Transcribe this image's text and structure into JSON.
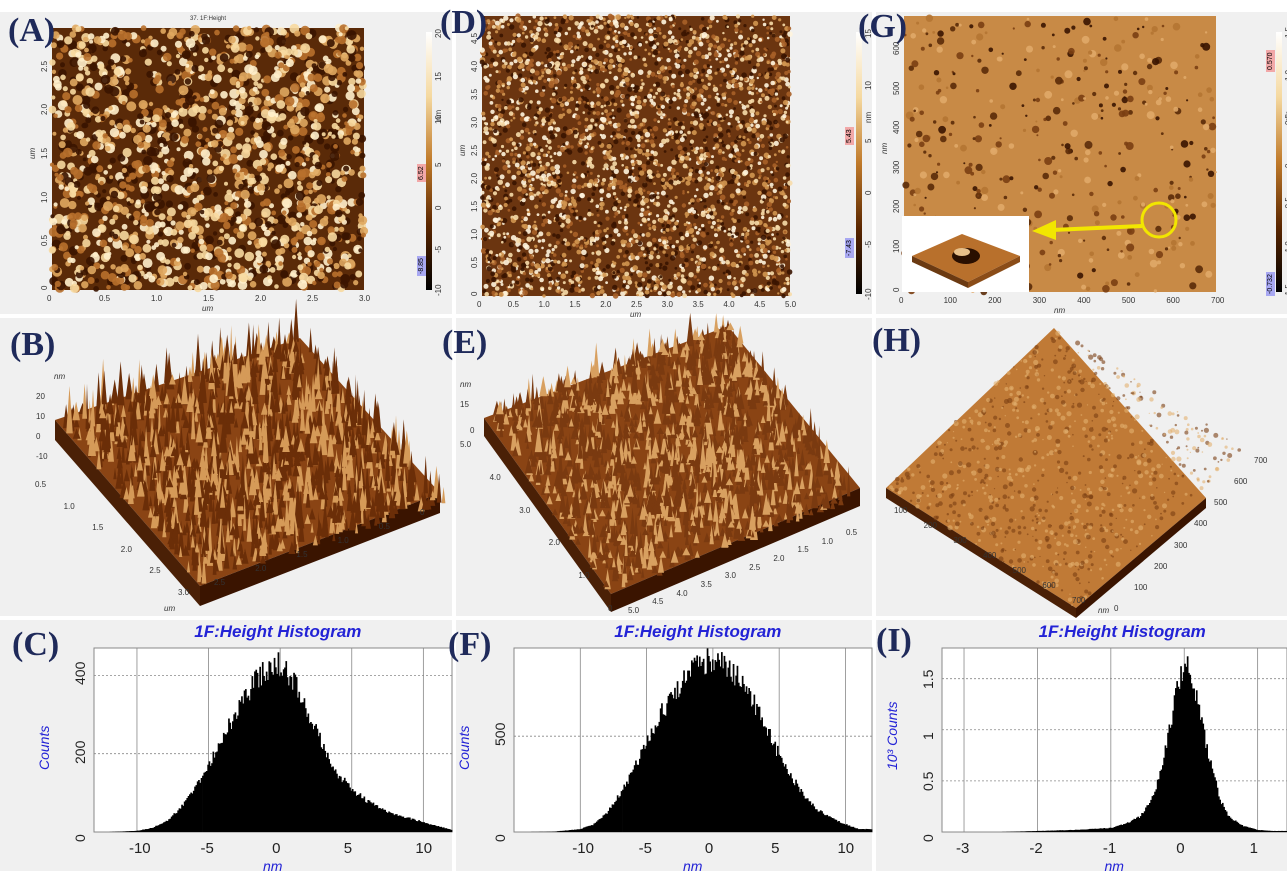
{
  "labels": {
    "a": "(A)",
    "b": "(B)",
    "c": "(C)",
    "d": "(D)",
    "e": "(E)",
    "f": "(F)",
    "g": "(G)",
    "h": "(H)",
    "i": "(I)"
  },
  "colors": {
    "afm_light": "#f2c680",
    "afm_mid": "#a55a1c",
    "afm_dark": "#3a1400",
    "label": "#1f2a5a",
    "hist_blue": "#2323d6"
  },
  "afm_a": {
    "title": "37. 1F:Height",
    "xticks": [
      "0",
      "0.5",
      "1.0",
      "1.5",
      "2.0",
      "2.5",
      "3.0"
    ],
    "yticks": [
      "0",
      "0.5",
      "1.0",
      "1.5",
      "2.0",
      "2.5"
    ],
    "xunit": "um",
    "yunit": "um",
    "cbar_ticks": [
      "-10",
      "-5",
      "0",
      "5",
      "10",
      "15",
      "20"
    ],
    "cbar_unit": "nm",
    "cbar_max": "6.52",
    "cbar_min": "-8.85"
  },
  "afm_d": {
    "xticks": [
      "0",
      "0.5",
      "1.0",
      "1.5",
      "2.0",
      "2.5",
      "3.0",
      "3.5",
      "4.0",
      "4.5",
      "5.0"
    ],
    "yticks": [
      "0",
      "0.5",
      "1.0",
      "1.5",
      "2.0",
      "2.5",
      "3.0",
      "3.5",
      "4.0",
      "4.5"
    ],
    "xunit": "um",
    "yunit": "um",
    "cbar_ticks": [
      "-10",
      "-5",
      "0",
      "5",
      "10",
      "15"
    ],
    "cbar_unit": "nm",
    "cbar_max": "5.43",
    "cbar_min": "-7.43"
  },
  "afm_g": {
    "xticks": [
      "0",
      "100",
      "200",
      "300",
      "400",
      "500",
      "600",
      "700"
    ],
    "yticks": [
      "0",
      "100",
      "200",
      "300",
      "400",
      "500",
      "600"
    ],
    "xunit": "nm",
    "yunit": "nm",
    "cbar_ticks": [
      "-1.5",
      "-1.0",
      "-0.5",
      "0",
      "0.5",
      "1.0",
      "1.5"
    ],
    "cbar_unit": "nm",
    "cbar_max": "0.570",
    "cbar_min": "-0.732"
  },
  "surf_b": {
    "zunit": "nm",
    "zticks": [
      "20",
      "10",
      "0",
      "-10"
    ],
    "left_ticks": [
      "0.5",
      "1.0",
      "1.5",
      "2.0",
      "2.5",
      "3.0"
    ],
    "right_ticks": [
      "2.5",
      "2.0",
      "1.5",
      "1.0",
      "0.5",
      "0"
    ],
    "unit": "um"
  },
  "surf_e": {
    "zunit": "nm",
    "zticks": [
      "15",
      "0"
    ],
    "left_ticks": [
      "5.0",
      "4.0",
      "3.0",
      "2.0",
      "1.0",
      "0"
    ],
    "right_ticks": [
      "5.0",
      "4.5",
      "4.0",
      "3.5",
      "3.0",
      "2.5",
      "2.0",
      "1.5",
      "1.0",
      "0.5"
    ]
  },
  "surf_h": {
    "left_ticks": [
      "100",
      "200",
      "300",
      "400",
      "500",
      "600",
      "700"
    ],
    "right_ticks": [
      "700",
      "600",
      "500",
      "400",
      "300",
      "200",
      "100",
      "0"
    ],
    "unit": "nm"
  },
  "chart_data": [
    {
      "type": "bar",
      "title": "1F:Height Histogram",
      "xlabel": "nm",
      "ylabel": "Counts",
      "xlim": [
        -13,
        12
      ],
      "ylim": [
        0,
        470
      ],
      "xticks": [
        -10,
        -5,
        0,
        5,
        10
      ],
      "yticks": [
        0,
        200,
        400
      ],
      "x": [
        -12,
        -10,
        -9,
        -8,
        -7,
        -6,
        -5,
        -4,
        -3,
        -2,
        -1,
        0,
        1,
        2,
        3,
        4,
        5,
        6,
        7,
        8,
        9,
        10,
        11,
        12
      ],
      "values": [
        0,
        3,
        10,
        25,
        60,
        110,
        170,
        240,
        310,
        370,
        420,
        430,
        380,
        300,
        220,
        150,
        110,
        80,
        60,
        45,
        35,
        25,
        15,
        5
      ]
    },
    {
      "type": "bar",
      "title": "1F:Height Histogram",
      "xlabel": "nm",
      "ylabel": "Counts",
      "xlim": [
        -15,
        12
      ],
      "ylim": [
        0,
        960
      ],
      "xticks": [
        -10,
        -5,
        0,
        5,
        10
      ],
      "yticks": [
        0,
        500
      ],
      "x": [
        -14,
        -12,
        -10,
        -9,
        -8,
        -7,
        -6,
        -5,
        -4,
        -3,
        -2,
        -1,
        0,
        1,
        2,
        3,
        4,
        5,
        6,
        7,
        8,
        9,
        10,
        11
      ],
      "values": [
        0,
        2,
        15,
        40,
        100,
        200,
        320,
        470,
        610,
        720,
        820,
        880,
        900,
        870,
        790,
        680,
        540,
        400,
        280,
        180,
        110,
        70,
        40,
        15
      ]
    },
    {
      "type": "bar",
      "title": "1F:Height Histogram",
      "xlabel": "nm",
      "ylabel": "10³ Counts",
      "xlim": [
        -3.3,
        1.4
      ],
      "ylim": [
        0,
        1.8
      ],
      "xticks": [
        -3,
        -2,
        -1,
        0,
        1
      ],
      "yticks": [
        0,
        0.5,
        1.0,
        1.5
      ],
      "x": [
        -3.0,
        -2.5,
        -2.0,
        -1.5,
        -1.0,
        -0.8,
        -0.6,
        -0.5,
        -0.4,
        -0.3,
        -0.2,
        -0.1,
        0,
        0.1,
        0.2,
        0.3,
        0.4,
        0.5,
        0.6,
        0.8,
        1.0,
        1.2
      ],
      "values": [
        0,
        0,
        0.01,
        0.02,
        0.04,
        0.08,
        0.15,
        0.25,
        0.4,
        0.65,
        1.0,
        1.4,
        1.65,
        1.55,
        1.2,
        0.85,
        0.55,
        0.3,
        0.15,
        0.06,
        0.02,
        0.01
      ]
    }
  ]
}
